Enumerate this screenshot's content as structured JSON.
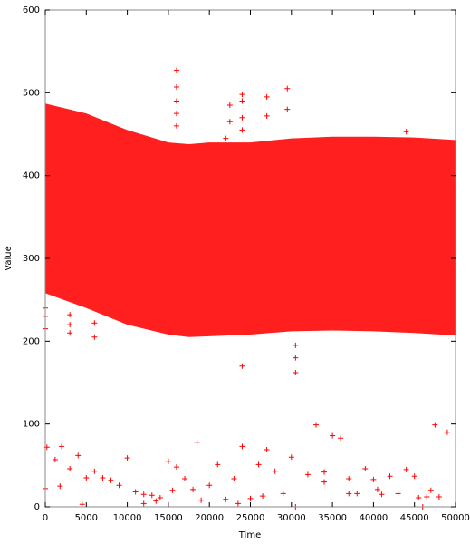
{
  "chart_data": {
    "type": "scatter",
    "xlabel": "Time",
    "ylabel": "Value",
    "color": "#ff0000",
    "marker": "+",
    "xlim": [
      0,
      50000
    ],
    "ylim": [
      0,
      600
    ],
    "xticks": [
      0,
      5000,
      10000,
      15000,
      20000,
      25000,
      30000,
      35000,
      40000,
      45000,
      50000
    ],
    "yticks": [
      0,
      100,
      200,
      300,
      400,
      500,
      600
    ],
    "band": {
      "x": [
        0,
        5000,
        10000,
        15000,
        17500,
        20000,
        25000,
        30000,
        35000,
        40000,
        45000,
        50000
      ],
      "upper": [
        487,
        475,
        455,
        440,
        438,
        440,
        440,
        445,
        447,
        447,
        446,
        443
      ],
      "lower": [
        258,
        240,
        220,
        208,
        205,
        206,
        208,
        212,
        213,
        212,
        210,
        207
      ]
    },
    "points": {
      "x": [
        0,
        200,
        1200,
        1800,
        2000,
        3000,
        4000,
        4500,
        5000,
        6000,
        7000,
        8000,
        9000,
        10000,
        11000,
        12000,
        12000,
        13000,
        13500,
        14000,
        15000,
        15500,
        16000,
        17000,
        18000,
        18500,
        19000,
        20000,
        21000,
        22000,
        23000,
        23500,
        24000,
        25000,
        26000,
        26500,
        27000,
        28000,
        29000,
        30000,
        30500,
        32000,
        33000,
        34000,
        34000,
        35000,
        36000,
        37000,
        37000,
        38000,
        39000,
        40000,
        40500,
        41000,
        42000,
        43000,
        44000,
        45000,
        45500,
        46000,
        46500,
        47000,
        47500,
        48000,
        49000,
        16000,
        16000,
        16000,
        16000,
        16000,
        22500,
        22500,
        24000,
        24000,
        24000,
        24000,
        27000,
        27000,
        29500,
        29500,
        44000,
        24000,
        30500,
        30500,
        30500,
        3000,
        3000,
        3000,
        6000,
        6000,
        0,
        0,
        0,
        22000
      ],
      "y": [
        22,
        72,
        57,
        25,
        73,
        46,
        62,
        3,
        35,
        43,
        35,
        32,
        26,
        59,
        18,
        15,
        4,
        14,
        7,
        11,
        55,
        20,
        48,
        34,
        21,
        78,
        8,
        26,
        51,
        9,
        34,
        4,
        73,
        10,
        51,
        13,
        69,
        43,
        16,
        60,
        0,
        39,
        99,
        42,
        30,
        86,
        83,
        34,
        16,
        16,
        46,
        33,
        21,
        15,
        37,
        16,
        45,
        37,
        11,
        0,
        12,
        20,
        99,
        12,
        90,
        527,
        507,
        490,
        475,
        460,
        485,
        465,
        498,
        490,
        470,
        455,
        495,
        472,
        505,
        480,
        453,
        170,
        162,
        180,
        195,
        210,
        220,
        232,
        205,
        222,
        215,
        230,
        240,
        445
      ]
    }
  }
}
